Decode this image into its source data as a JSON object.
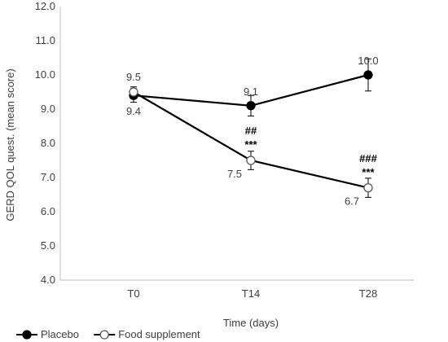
{
  "chart_data": {
    "type": "line",
    "categories": [
      "T0",
      "T14",
      "T28"
    ],
    "xlabel": "Time (days)",
    "ylabel": "GERD QOL quest. (mean score)",
    "ylim": [
      4.0,
      12.0
    ],
    "yticks": [
      "4.0",
      "5.0",
      "6.0",
      "7.0",
      "8.0",
      "9.0",
      "10.0",
      "11.0",
      "12.0"
    ],
    "grid": false,
    "legend_position": "bottom-left",
    "series": [
      {
        "name": "Placebo",
        "marker": "filled-circle",
        "color": "#000000",
        "values": [
          9.4,
          9.1,
          10.0
        ],
        "errors": [
          0.2,
          0.3,
          0.47
        ],
        "labels": [
          "9.4",
          "9.1",
          "10.0"
        ]
      },
      {
        "name": "Food supplement",
        "marker": "open-circle",
        "color": "#000000",
        "values": [
          9.5,
          7.5,
          6.7
        ],
        "errors": [
          0.15,
          0.27,
          0.28
        ],
        "labels": [
          "9.5",
          "7.5",
          "6.7"
        ]
      }
    ],
    "annotations": [
      {
        "category": "T14",
        "lines": [
          "##",
          "***"
        ]
      },
      {
        "category": "T28",
        "lines": [
          "###",
          "***"
        ]
      }
    ]
  }
}
